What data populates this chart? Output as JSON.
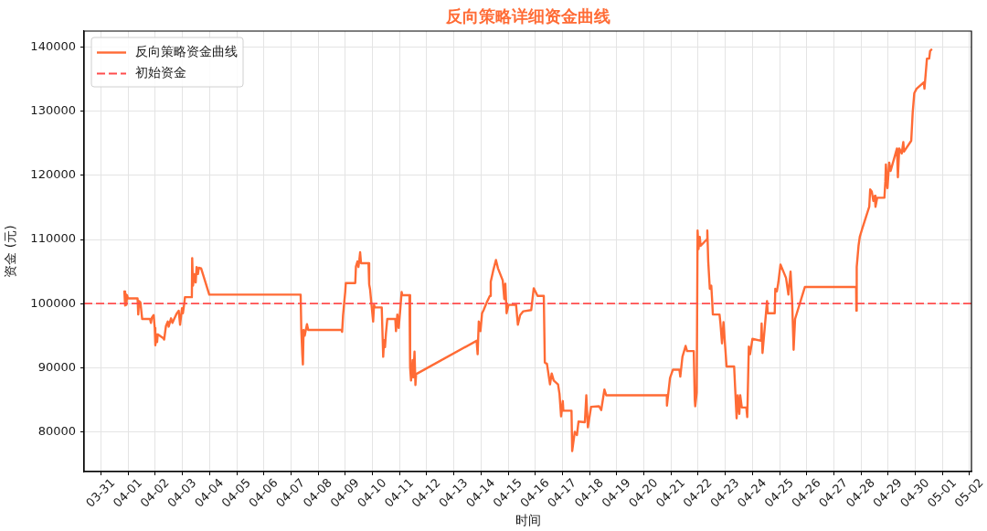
{
  "chart_data": {
    "type": "line",
    "title": "反向策略详细资金曲线",
    "xlabel": "时间",
    "ylabel": "资金 (元)",
    "x": [
      "--03-31T20:36",
      "--03-31T21:18",
      "--03-31T21:48",
      "--03-31T22:24",
      "--03-31T23:00",
      "--03-31T23:54",
      "--04-01T08:18",
      "--04-01T08:54",
      "--04-01T09:36",
      "--04-01T10:48",
      "--04-01T12:24",
      "--04-01T19:18",
      "--04-01T20:06",
      "--04-01T20:54",
      "--04-01T22:30",
      "--04-01T23:30",
      "--04-02T00:00",
      "--04-02T00:54",
      "--04-02T01:36",
      "--04-02T02:06",
      "--04-02T07:00",
      "--04-02T07:48",
      "--04-02T09:24",
      "--04-02T11:00",
      "--04-02T11:48",
      "--04-02T13:54",
      "--04-02T15:06",
      "--04-02T18:42",
      "--04-02T20:42",
      "--04-02T21:54",
      "--04-02T23:36",
      "--04-03T00:24",
      "--04-03T01:36",
      "--04-03T02:12",
      "--04-03T08:18",
      "--04-03T08:36",
      "--04-03T09:18",
      "--04-03T10:30",
      "--04-03T11:42",
      "--04-03T12:30",
      "--04-03T13:42",
      "--04-03T14:30",
      "--04-03T16:30",
      "--04-03T23:42",
      "--04-07T08:30",
      "--04-07T09:06",
      "--04-07T10:00",
      "--04-07T10:30",
      "--04-07T11:06",
      "--04-07T12:06",
      "--04-07T14:06",
      "--04-07T15:12",
      "--04-08T20:42",
      "--04-08T21:12",
      "--04-08T22:00",
      "--04-08T23:06",
      "--04-08T23:54",
      "--04-09T00:24",
      "--04-09T08:48",
      "--04-09T09:24",
      "--04-09T10:48",
      "--04-09T11:36",
      "--04-09T12:24",
      "--04-09T13:06",
      "--04-09T13:54",
      "--04-09T20:30",
      "--04-09T21:06",
      "--04-09T21:54",
      "--04-09T22:54",
      "--04-09T23:36",
      "--04-10T00:36",
      "--04-10T01:24",
      "--04-10T02:12",
      "--04-10T08:12",
      "--04-10T09:30",
      "--04-10T10:18",
      "--04-10T11:06",
      "--04-10T11:54",
      "--04-10T13:06",
      "--04-10T20:12",
      "--04-10T20:48",
      "--04-10T22:00",
      "--04-10T23:12",
      "--04-11T00:24",
      "--04-11T01:48",
      "--04-11T02:24",
      "--04-11T08:42",
      "--04-11T09:18",
      "--04-11T10:06",
      "--04-11T11:30",
      "--04-11T12:06",
      "--04-11T13:12",
      "--04-11T14:00",
      "--04-11T14:36",
      "--04-13T20:06",
      "--04-13T21:00",
      "--04-13T22:00",
      "--04-13T23:30",
      "--04-14T00:54",
      "--04-14T02:18",
      "--04-14T05:06",
      "--04-14T07:48",
      "--04-14T08:36",
      "--04-14T10:42",
      "--04-14T13:12",
      "--04-14T15:00",
      "--04-14T19:12",
      "--04-14T20:36",
      "--04-14T21:30",
      "--04-14T22:36",
      "--04-15T00:18",
      "--04-15T07:00",
      "--04-15T08:36",
      "--04-15T10:36",
      "--04-15T13:24",
      "--04-15T20:24",
      "--04-15T22:36",
      "--04-16T00:36",
      "--04-16T02:00",
      "--04-16T07:30",
      "--04-16T08:24",
      "--04-16T10:18",
      "--04-16T13:00",
      "--04-16T14:30",
      "--04-16T16:18",
      "--04-16T20:06",
      "--04-16T21:24",
      "--04-16T22:48",
      "--04-17T00:18",
      "--04-17T00:48",
      "--04-17T08:00",
      "--04-17T08:36",
      "--04-17T10:54",
      "--04-17T12:48",
      "--04-17T14:12",
      "--04-17T19:48",
      "--04-17T21:06",
      "--04-17T22:30",
      "--04-18T01:18",
      "--04-18T08:18",
      "--04-18T10:18",
      "--04-18T13:06",
      "--04-18T14:42",
      "--04-20T20:18",
      "--04-20T20:24",
      "--04-20T23:06",
      "--04-21T01:42",
      "--04-21T07:24",
      "--04-21T08:12",
      "--04-21T10:06",
      "--04-21T12:54",
      "--04-21T14:12",
      "--04-21T20:06",
      "--04-21T21:00",
      "--04-21T21:24",
      "--04-21T22:42",
      "--04-21T23:30",
      "--04-22T00:18",
      "--04-22T01:24",
      "--04-22T02:12",
      "--04-22T07:36",
      "--04-22T08:06",
      "--04-22T08:54",
      "--04-22T10:18",
      "--04-22T11:36",
      "--04-22T12:24",
      "--04-22T13:00",
      "--04-22T18:54",
      "--04-22T19:42",
      "--04-22T21:06",
      "--04-22T22:24",
      "--04-23T01:06",
      "--04-23T07:48",
      "--04-23T10:00",
      "--04-23T11:00",
      "--04-23T12:24",
      "--04-23T13:12",
      "--04-23T14:36",
      "--04-23T18:36",
      "--04-23T19:24",
      "--04-23T20:48",
      "--04-23T21:54",
      "--04-24T00:00",
      "--04-24T07:36",
      "--04-24T08:06",
      "--04-24T08:54",
      "--04-24T10:48",
      "--04-24T12:54",
      "--04-24T13:30",
      "--04-24T19:42",
      "--04-24T20:12",
      "--04-24T21:36",
      "--04-24T22:54",
      "--04-25T00:48",
      "--04-25T05:42",
      "--04-25T07:48",
      "--04-25T09:42",
      "--04-25T11:06",
      "--04-25T12:24",
      "--04-25T13:42",
      "--04-25T22:24",
      "--04-27T19:42",
      "--04-27T19:54",
      "--04-27T20:12",
      "--04-27T21:48",
      "--04-27T22:54",
      "--04-28T01:06",
      "--04-28T07:18",
      "--04-28T08:06",
      "--04-28T09:30",
      "--04-28T10:54",
      "--04-28T12:12",
      "--04-28T12:48",
      "--04-28T14:18",
      "--04-28T20:42",
      "--04-28T21:30",
      "--04-28T22:00",
      "--04-28T23:24",
      "--04-29T00:54",
      "--04-29T02:12",
      "--04-29T07:48",
      "--04-29T08:36",
      "--04-29T09:48",
      "--04-29T12:00",
      "--04-29T13:24",
      "--04-29T14:00",
      "--04-29T20:24",
      "--04-29T21:42",
      "--04-29T23:06",
      "--04-30T01:06",
      "--04-30T07:30",
      "--04-30T08:06",
      "--04-30T10:18",
      "--04-30T12:18",
      "--04-30T13:06",
      "--04-30T14:12"
    ],
    "series": [
      {
        "name": "反向策略资金曲线",
        "color": "#ff6b35",
        "values": [
          101900,
          99700,
          101500,
          99800,
          101300,
          100800,
          100800,
          98300,
          100400,
          100200,
          97600,
          97600,
          97000,
          97800,
          98200,
          96200,
          93500,
          95200,
          94000,
          95200,
          94600,
          94400,
          96500,
          97200,
          96400,
          97700,
          97000,
          98400,
          98900,
          96700,
          99300,
          98500,
          100000,
          101000,
          101000,
          107100,
          102800,
          104600,
          103300,
          105700,
          104600,
          105600,
          105500,
          101400,
          101400,
          95800,
          92000,
          90500,
          95900,
          95000,
          96800,
          95900,
          95900,
          95600,
          98200,
          100300,
          101800,
          103200,
          103200,
          105800,
          106600,
          105700,
          106800,
          108000,
          106300,
          106300,
          103000,
          102200,
          100300,
          99000,
          97200,
          99800,
          99400,
          99400,
          91700,
          94300,
          93200,
          95300,
          97600,
          97600,
          95700,
          98300,
          96200,
          98700,
          101800,
          101300,
          101300,
          90100,
          88000,
          91200,
          88500,
          92500,
          87300,
          89000,
          94200,
          92100,
          97200,
          95700,
          98500,
          99000,
          100200,
          101200,
          103400,
          105100,
          106800,
          105500,
          103600,
          100700,
          103100,
          98500,
          99800,
          99800,
          96700,
          98200,
          98800,
          99000,
          102400,
          101700,
          101200,
          101200,
          90800,
          90600,
          87400,
          89100,
          88000,
          87400,
          85900,
          82400,
          84800,
          83300,
          83300,
          77000,
          80000,
          79500,
          81600,
          81500,
          85700,
          80700,
          83900,
          84000,
          83400,
          86600,
          85700,
          85700,
          84100,
          88400,
          89700,
          89700,
          88600,
          91700,
          93400,
          92600,
          92600,
          85000,
          84000,
          86100,
          111400,
          108500,
          110400,
          109000,
          110000,
          111400,
          106600,
          102300,
          102800,
          100400,
          98300,
          98300,
          96900,
          93800,
          97100,
          90200,
          90200,
          82100,
          85700,
          82800,
          85700,
          83800,
          83800,
          82300,
          93300,
          92100,
          94500,
          94200,
          96900,
          92300,
          96100,
          100400,
          98500,
          98500,
          102300,
          101900,
          103300,
          106100,
          104000,
          101400,
          105000,
          100400,
          92800,
          97600,
          102600,
          102600,
          98900,
          105700,
          109000,
          110400,
          111700,
          115100,
          117800,
          117500,
          116000,
          116800,
          115100,
          116500,
          116500,
          119000,
          121700,
          118000,
          122000,
          120700,
          124200,
          119700,
          124200,
          123400,
          125200,
          123700,
          125400,
          129800,
          132800,
          133500,
          134500,
          133500,
          138200,
          138200,
          139400,
          139600
        ]
      }
    ],
    "xlim": [
      "--03-30T09:00",
      "--05-02T01:40"
    ],
    "ylim": [
      73800,
      142500
    ],
    "xticks": [
      {
        "value": "--03-31",
        "label": "03-31"
      },
      {
        "value": "--04-01",
        "label": "04-01"
      },
      {
        "value": "--04-02",
        "label": "04-02"
      },
      {
        "value": "--04-03",
        "label": "04-03"
      },
      {
        "value": "--04-04",
        "label": "04-04"
      },
      {
        "value": "--04-05",
        "label": "04-05"
      },
      {
        "value": "--04-06",
        "label": "04-06"
      },
      {
        "value": "--04-07",
        "label": "04-07"
      },
      {
        "value": "--04-08",
        "label": "04-08"
      },
      {
        "value": "--04-09",
        "label": "04-09"
      },
      {
        "value": "--04-10",
        "label": "04-10"
      },
      {
        "value": "--04-11",
        "label": "04-11"
      },
      {
        "value": "--04-12",
        "label": "04-12"
      },
      {
        "value": "--04-13",
        "label": "04-13"
      },
      {
        "value": "--04-14",
        "label": "04-14"
      },
      {
        "value": "--04-15",
        "label": "04-15"
      },
      {
        "value": "--04-16",
        "label": "04-16"
      },
      {
        "value": "--04-17",
        "label": "04-17"
      },
      {
        "value": "--04-18",
        "label": "04-18"
      },
      {
        "value": "--04-19",
        "label": "04-19"
      },
      {
        "value": "--04-20",
        "label": "04-20"
      },
      {
        "value": "--04-21",
        "label": "04-21"
      },
      {
        "value": "--04-22",
        "label": "04-22"
      },
      {
        "value": "--04-23",
        "label": "04-23"
      },
      {
        "value": "--04-24",
        "label": "04-24"
      },
      {
        "value": "--04-25",
        "label": "04-25"
      },
      {
        "value": "--04-26",
        "label": "04-26"
      },
      {
        "value": "--04-27",
        "label": "04-27"
      },
      {
        "value": "--04-28",
        "label": "04-28"
      },
      {
        "value": "--04-29",
        "label": "04-29"
      },
      {
        "value": "--04-30",
        "label": "04-30"
      },
      {
        "value": "--05-01",
        "label": "05-01"
      },
      {
        "value": "--05-02",
        "label": "05-02"
      }
    ],
    "yticks": [
      80000,
      90000,
      100000,
      110000,
      120000,
      130000,
      140000
    ],
    "grid": true,
    "legend": "top left",
    "ref_lines": [
      {
        "axis": "y",
        "value": 100000,
        "label": "初始资金",
        "color": "#ff4d4d",
        "line_style": "dashed"
      }
    ]
  }
}
